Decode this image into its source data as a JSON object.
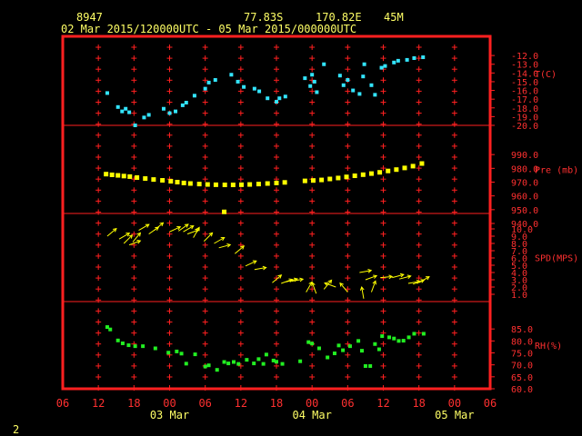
{
  "header": {
    "station_id": "8947",
    "lat": "77.83S",
    "lon": "170.82E",
    "elevation": "45M",
    "time_range": "02 Mar 2015/120000UTC - 05 Mar 2015/000000UTC"
  },
  "page_number": "2",
  "colors": {
    "frame": "#ff2020",
    "grid_marks": "#ff2020",
    "tick_text": "#ff3030",
    "label_text": "#ffff66",
    "temperature": "#33e5ff",
    "pressure": "#ffff00",
    "wind": "#ffff00",
    "humidity": "#22ee22"
  },
  "chart_data": {
    "type": "scatter",
    "x_axis": {
      "unit": "hours since 02 Mar 2015 06 UTC",
      "range": [
        0,
        72
      ],
      "tick_labels": [
        "06",
        "12",
        "18",
        "00",
        "06",
        "12",
        "18",
        "00",
        "06",
        "12",
        "18",
        "00",
        "06"
      ],
      "date_labels": [
        {
          "label": "03 Mar",
          "at_hour": 18
        },
        {
          "label": "04 Mar",
          "at_hour": 42
        },
        {
          "label": "05 Mar",
          "at_hour": 66
        }
      ]
    },
    "panels": [
      {
        "name": "temperature",
        "label": "T(C)",
        "range": [
          -20,
          -11
        ],
        "ticks": [
          "-12.0",
          "-13.0",
          "-14.0",
          "-15.0",
          "-16.0",
          "-17.0",
          "-18.0",
          "-19.0",
          "-20.0"
        ],
        "points": [
          [
            7.5,
            -16.3
          ],
          [
            9.3,
            -17.9
          ],
          [
            10,
            -18.4
          ],
          [
            10.6,
            -18.1
          ],
          [
            11.2,
            -18.5
          ],
          [
            12.2,
            -20.0
          ],
          [
            13.7,
            -19.1
          ],
          [
            14.5,
            -18.8
          ],
          [
            17,
            -18.1
          ],
          [
            18,
            -18.6
          ],
          [
            19,
            -18.4
          ],
          [
            20.2,
            -17.7
          ],
          [
            20.8,
            -17.4
          ],
          [
            22.2,
            -16.6
          ],
          [
            24,
            -15.8
          ],
          [
            24.6,
            -15.1
          ],
          [
            25.7,
            -14.8
          ],
          [
            28.4,
            -14.2
          ],
          [
            29.5,
            -15.0
          ],
          [
            30.5,
            -15.6
          ],
          [
            32.3,
            -15.8
          ],
          [
            33.1,
            -16.1
          ],
          [
            34.5,
            -16.9
          ],
          [
            36,
            -17.3
          ],
          [
            36.5,
            -16.9
          ],
          [
            37.5,
            -16.7
          ],
          [
            40.8,
            -14.6
          ],
          [
            41.7,
            -15.5
          ],
          [
            42,
            -14.2
          ],
          [
            42.4,
            -15.0
          ],
          [
            42.8,
            -16.2
          ],
          [
            44,
            -13.0
          ],
          [
            46.7,
            -14.3
          ],
          [
            47.3,
            -15.4
          ],
          [
            48,
            -14.8
          ],
          [
            48.9,
            -16.0
          ],
          [
            50,
            -16.4
          ],
          [
            50.6,
            -14.4
          ],
          [
            50.8,
            -13.0
          ],
          [
            52,
            -15.4
          ],
          [
            52.6,
            -16.5
          ],
          [
            53.7,
            -13.4
          ],
          [
            54.3,
            -13.2
          ],
          [
            55.8,
            -12.8
          ],
          [
            56.5,
            -12.6
          ],
          [
            58,
            -12.5
          ],
          [
            59.2,
            -12.3
          ],
          [
            60.7,
            -12.2
          ]
        ]
      },
      {
        "name": "pressure",
        "label": "Pre (mb)",
        "range": [
          940,
          1000
        ],
        "ticks": [
          "990.0",
          "980.0",
          "970.0",
          "960.0",
          "950.0",
          "940.0"
        ],
        "points": [
          [
            7.3,
            975.8
          ],
          [
            8.3,
            975.3
          ],
          [
            9.3,
            974.9
          ],
          [
            10.3,
            974.4
          ],
          [
            11.3,
            974
          ],
          [
            12.5,
            973.3
          ],
          [
            13.9,
            972.6
          ],
          [
            15.3,
            971.9
          ],
          [
            16.8,
            971.3
          ],
          [
            18.2,
            970.6
          ],
          [
            19.3,
            970
          ],
          [
            20.4,
            969.4
          ],
          [
            21.5,
            969
          ],
          [
            23,
            968.6
          ],
          [
            24.4,
            968.3
          ],
          [
            25.8,
            968.1
          ],
          [
            27.2,
            948.4
          ],
          [
            27.3,
            968
          ],
          [
            28.7,
            968
          ],
          [
            30.1,
            968.1
          ],
          [
            31.5,
            968.3
          ],
          [
            33,
            968.6
          ],
          [
            34.5,
            969
          ],
          [
            36,
            969.4
          ],
          [
            37.4,
            969.8
          ],
          [
            40.8,
            970.9
          ],
          [
            42.2,
            971.2
          ],
          [
            43.6,
            971.6
          ],
          [
            45,
            972.3
          ],
          [
            46.4,
            973
          ],
          [
            47.8,
            973.8
          ],
          [
            49.2,
            974.6
          ],
          [
            50.6,
            975.4
          ],
          [
            52,
            976.2
          ],
          [
            53.4,
            977.1
          ],
          [
            54.8,
            978.1
          ],
          [
            56.2,
            979.1
          ],
          [
            57.6,
            980.3
          ],
          [
            59,
            981.6
          ],
          [
            60.5,
            983.5
          ]
        ]
      },
      {
        "name": "wind",
        "label": "SPD(MPS)",
        "range": [
          0,
          11
        ],
        "ticks": [
          "10.0",
          "9.0",
          "8.0",
          "7.0",
          "6.0",
          "5.0",
          "4.0",
          "3.0",
          "2.0",
          "1.0"
        ],
        "points": [
          [
            7.5,
            9.0,
            40
          ],
          [
            9.5,
            8.6,
            30
          ],
          [
            10.3,
            8.0,
            45
          ],
          [
            11.2,
            7.8,
            20
          ],
          [
            11.8,
            8.2,
            50
          ],
          [
            12.8,
            9.8,
            30
          ],
          [
            14.5,
            9.3,
            35
          ],
          [
            15.4,
            9.8,
            40
          ],
          [
            18,
            9.6,
            25
          ],
          [
            19.5,
            9.7,
            35
          ],
          [
            20.3,
            9.6,
            30
          ],
          [
            21,
            9.3,
            20
          ],
          [
            22,
            8.8,
            60
          ],
          [
            23.8,
            8.3,
            45
          ],
          [
            25.5,
            8.0,
            30
          ],
          [
            26.3,
            7.4,
            15
          ],
          [
            29,
            6.6,
            40
          ],
          [
            30.8,
            4.9,
            25
          ],
          [
            32.3,
            4.4,
            10
          ],
          [
            35.3,
            2.6,
            40
          ],
          [
            36.8,
            2.5,
            20
          ],
          [
            37.6,
            2.7,
            15
          ],
          [
            38.5,
            2.8,
            10
          ],
          [
            41,
            1.3,
            60
          ],
          [
            42.7,
            1.1,
            110
          ],
          [
            44,
            1.7,
            50
          ],
          [
            46,
            2.0,
            160
          ],
          [
            48,
            1.3,
            130
          ],
          [
            50,
            4.0,
            10
          ],
          [
            51,
            3.0,
            20
          ],
          [
            50.7,
            0.4,
            100
          ],
          [
            52,
            1.3,
            70
          ],
          [
            53.5,
            3.3,
            5
          ],
          [
            55.5,
            3.3,
            15
          ],
          [
            56.7,
            3.1,
            15
          ],
          [
            58.2,
            2.5,
            10
          ],
          [
            59,
            2.4,
            20
          ],
          [
            60,
            2.6,
            30
          ]
        ]
      },
      {
        "name": "humidity",
        "label": "RH(%)",
        "range": [
          60,
          90
        ],
        "ticks": [
          "85.0",
          "80.0",
          "75.0",
          "70.0",
          "65.0",
          "60.0"
        ],
        "points": [
          [
            7.5,
            85.8
          ],
          [
            8,
            84.8
          ],
          [
            9.3,
            80.2
          ],
          [
            10.1,
            79
          ],
          [
            11.1,
            78.2
          ],
          [
            12.2,
            77.8
          ],
          [
            13.5,
            77.8
          ],
          [
            15.6,
            76.9
          ],
          [
            17.8,
            75.1
          ],
          [
            19.2,
            75.6
          ],
          [
            20,
            74.7
          ],
          [
            20.8,
            70.5
          ],
          [
            22.3,
            74.4
          ],
          [
            24,
            69.3
          ],
          [
            24.6,
            69.8
          ],
          [
            26,
            67.9
          ],
          [
            27.2,
            71.2
          ],
          [
            27.9,
            70.6
          ],
          [
            28.8,
            71.2
          ],
          [
            29.6,
            70.4
          ],
          [
            31,
            72.1
          ],
          [
            32.2,
            70.6
          ],
          [
            33,
            72.4
          ],
          [
            33.8,
            70.4
          ],
          [
            34.3,
            74.3
          ],
          [
            35.5,
            71.8
          ],
          [
            36,
            71.3
          ],
          [
            37,
            70.4
          ],
          [
            40,
            71.5
          ],
          [
            41.4,
            79.5
          ],
          [
            42,
            78.9
          ],
          [
            43.2,
            76.9
          ],
          [
            44.6,
            73.1
          ],
          [
            45.8,
            74.8
          ],
          [
            46.5,
            78.1
          ],
          [
            47.2,
            76.1
          ],
          [
            48.4,
            77.8
          ],
          [
            49.8,
            80
          ],
          [
            50.4,
            75.9
          ],
          [
            51,
            69.5
          ],
          [
            51.8,
            69.5
          ],
          [
            52.6,
            78.7
          ],
          [
            53.3,
            76.5
          ],
          [
            53.8,
            82
          ],
          [
            55,
            81.5
          ],
          [
            55.8,
            81
          ],
          [
            56.6,
            80
          ],
          [
            57.4,
            80.1
          ],
          [
            58.3,
            81.5
          ],
          [
            59.2,
            83
          ],
          [
            60.8,
            83
          ]
        ]
      }
    ]
  }
}
